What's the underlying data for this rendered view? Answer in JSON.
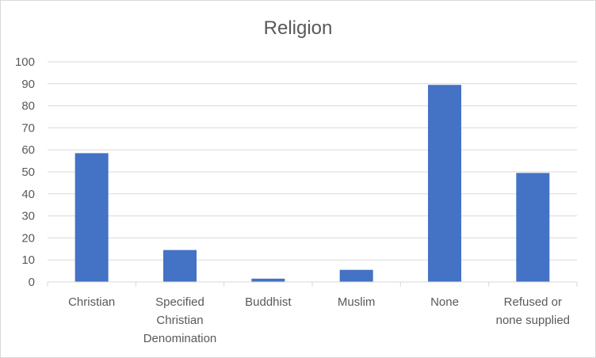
{
  "chart_data": {
    "type": "bar",
    "title": "Religion",
    "xlabel": "",
    "ylabel": "",
    "ylim": [
      0,
      100
    ],
    "yticks": [
      0,
      10,
      20,
      30,
      40,
      50,
      60,
      70,
      80,
      90,
      100
    ],
    "categories": [
      [
        "Christian"
      ],
      [
        "Specified",
        "Christian",
        "Denomination"
      ],
      [
        "Buddhist"
      ],
      [
        "Muslim"
      ],
      [
        "None"
      ],
      [
        "Refused or",
        "none supplied"
      ]
    ],
    "values": [
      58.5,
      14.5,
      1.5,
      5.5,
      89.5,
      49.5
    ],
    "grid": true,
    "legend": "none",
    "bar_color": "#4472c4",
    "grid_color": "#d9d9d9",
    "text_color": "#595959"
  }
}
